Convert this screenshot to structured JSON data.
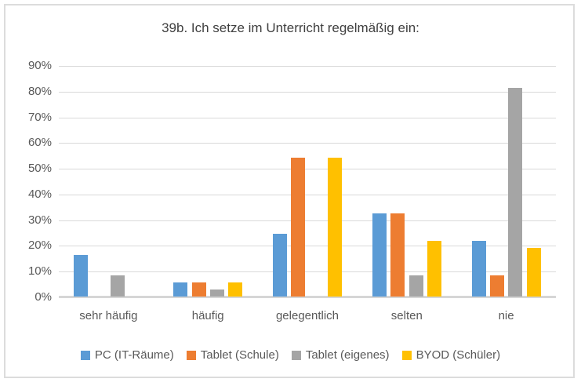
{
  "title": "39b. Ich setze im Unterricht regelmäßig ein:",
  "chart_data": {
    "type": "bar",
    "title": "39b. Ich setze im Unterricht regelmäßig ein:",
    "xlabel": "",
    "ylabel": "",
    "ylim": [
      0,
      90
    ],
    "ytick_step": 10,
    "ytick_labels": [
      "0%",
      "10%",
      "20%",
      "30%",
      "40%",
      "50%",
      "60%",
      "70%",
      "80%",
      "90%"
    ],
    "grid": true,
    "legend_position": "bottom",
    "categories": [
      "sehr häufig",
      "häufig",
      "gelegentlich",
      "selten",
      "nie"
    ],
    "series": [
      {
        "name": "PC (IT-Räume)",
        "color": "#5B9BD5",
        "values": [
          16.2,
          5.4,
          24.3,
          32.4,
          21.6
        ]
      },
      {
        "name": "Tablet (Schule)",
        "color": "#ED7D31",
        "values": [
          0,
          5.4,
          54.1,
          32.4,
          8.1
        ]
      },
      {
        "name": "Tablet (eigenes)",
        "color": "#A5A5A5",
        "values": [
          8.1,
          2.7,
          0,
          8.1,
          81.1
        ]
      },
      {
        "name": "BYOD (Schüler)",
        "color": "#FFC000",
        "values": [
          0,
          5.4,
          54.1,
          21.6,
          18.9
        ]
      }
    ],
    "colors": {
      "gridline": "#D9D9D9",
      "axis_line": "#D6D6D6",
      "title_text": "#404040",
      "axis_text": "#595959"
    }
  }
}
